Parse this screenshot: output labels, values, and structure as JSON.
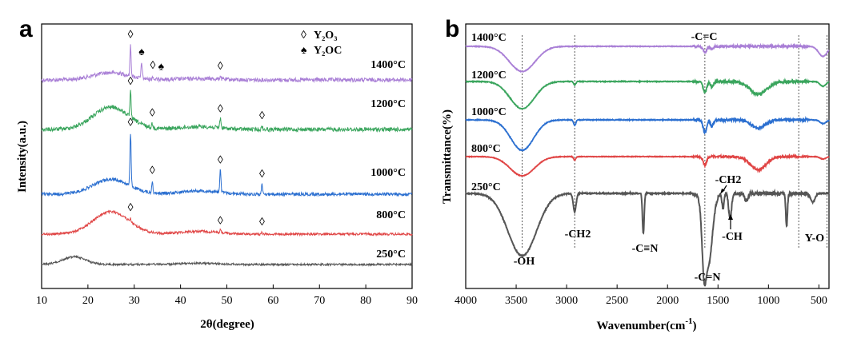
{
  "chart_data": [
    {
      "panel": "a",
      "type": "line",
      "title": "",
      "xlabel": "2θ(degree)",
      "ylabel": "Intensity(a.u.)",
      "xlim": [
        10,
        90
      ],
      "xticks": [
        10,
        20,
        30,
        40,
        50,
        60,
        70,
        80,
        90
      ],
      "legend": {
        "position": "top-right",
        "entries": [
          {
            "symbol": "◊",
            "label": "Y₂O₃"
          },
          {
            "symbol": "♠",
            "label": "Y₂OC"
          }
        ]
      },
      "series": [
        {
          "name": "1400°C",
          "color": "#a97fd6",
          "baseline": 0.0,
          "broad_center": 25,
          "broad_height": 0.13,
          "peaks": [
            [
              29.2,
              0.55
            ],
            [
              31.6,
              0.28
            ],
            [
              34.0,
              0.06
            ],
            [
              35.8,
              0.05
            ],
            [
              48.6,
              0.06
            ]
          ],
          "markers": [
            {
              "x": 29.2,
              "symbol": "◊"
            },
            {
              "x": 31.6,
              "symbol": "♠"
            },
            {
              "x": 34.0,
              "symbol": "◊"
            },
            {
              "x": 35.8,
              "symbol": "♠"
            },
            {
              "x": 48.6,
              "symbol": "◊"
            }
          ]
        },
        {
          "name": "1200°C",
          "color": "#3aa55d",
          "baseline": 0.0,
          "broad_center": 25,
          "broad_height": 0.4,
          "peaks": [
            [
              29.2,
              0.45
            ],
            [
              33.9,
              0.08
            ],
            [
              48.6,
              0.18
            ],
            [
              57.6,
              0.06
            ]
          ],
          "markers": [
            {
              "x": 29.2,
              "symbol": "◊"
            },
            {
              "x": 33.9,
              "symbol": "◊"
            },
            {
              "x": 48.6,
              "symbol": "◊"
            },
            {
              "x": 57.6,
              "symbol": "◊"
            }
          ]
        },
        {
          "name": "1000°C",
          "color": "#2b6fd0",
          "baseline": 0.0,
          "broad_center": 25,
          "broad_height": 0.22,
          "peaks": [
            [
              29.2,
              0.78
            ],
            [
              33.9,
              0.18
            ],
            [
              48.6,
              0.35
            ],
            [
              57.6,
              0.14
            ]
          ],
          "markers": [
            {
              "x": 29.2,
              "symbol": "◊"
            },
            {
              "x": 33.9,
              "symbol": "◊"
            },
            {
              "x": 48.6,
              "symbol": "◊"
            },
            {
              "x": 57.6,
              "symbol": "◊"
            }
          ]
        },
        {
          "name": "800°C",
          "color": "#e04545",
          "baseline": 0.0,
          "broad_center": 25,
          "broad_height": 0.4,
          "peaks": [
            [
              29.2,
              0.06
            ],
            [
              48.6,
              0.05
            ],
            [
              57.6,
              0.03
            ]
          ],
          "markers": [
            {
              "x": 29.2,
              "symbol": "◊"
            },
            {
              "x": 48.6,
              "symbol": "◊"
            },
            {
              "x": 57.6,
              "symbol": "◊"
            }
          ]
        },
        {
          "name": "250°C",
          "color": "#555555",
          "baseline": 0.0,
          "broad_center": 17,
          "broad_height": 0.16,
          "peaks": [],
          "markers": []
        }
      ]
    },
    {
      "panel": "b",
      "type": "line",
      "title": "",
      "xlabel": "Wavenumber(cm",
      "xlabel_sup": "-1",
      "xlabel_end": ")",
      "ylabel": "Transmittance(%)",
      "xlim": [
        4000,
        400
      ],
      "xticks": [
        4000,
        3500,
        3000,
        2500,
        2000,
        1500,
        1000,
        500
      ],
      "reference_lines": [
        3440,
        2920,
        1630,
        700,
        420
      ],
      "annotations": [
        "-OH",
        "-CH2",
        "-C≡N",
        "-C=N",
        "-CH2",
        "-CH",
        "Y-O",
        "-C=C"
      ],
      "series": [
        {
          "name": "1400°C",
          "color": "#a97fd6",
          "depth": 0.55,
          "bands": [
            [
              3440,
              180,
              0.75
            ],
            [
              1630,
              25,
              0.18
            ],
            [
              1560,
              20,
              0.08
            ],
            [
              460,
              60,
              0.3
            ]
          ]
        },
        {
          "name": "1200°C",
          "color": "#3aa55d",
          "depth": 0.55,
          "bands": [
            [
              3440,
              170,
              0.85
            ],
            [
              2920,
              15,
              0.12
            ],
            [
              1630,
              25,
              0.35
            ],
            [
              1560,
              20,
              0.18
            ],
            [
              1100,
              120,
              0.4
            ],
            [
              460,
              40,
              0.15
            ]
          ]
        },
        {
          "name": "1000°C",
          "color": "#2b6fd0",
          "depth": 0.55,
          "bands": [
            [
              3440,
              160,
              0.95
            ],
            [
              2920,
              15,
              0.18
            ],
            [
              1630,
              25,
              0.4
            ],
            [
              1560,
              20,
              0.2
            ],
            [
              1100,
              100,
              0.25
            ],
            [
              460,
              40,
              0.12
            ]
          ]
        },
        {
          "name": "800°C",
          "color": "#e04545",
          "depth": 0.55,
          "bands": [
            [
              3440,
              170,
              0.8
            ],
            [
              2920,
              15,
              0.15
            ],
            [
              1630,
              25,
              0.35
            ],
            [
              1100,
              110,
              0.55
            ],
            [
              460,
              40,
              0.1
            ]
          ]
        },
        {
          "name": "250°C",
          "color": "#555555",
          "depth": 1.0,
          "bands": [
            [
              3440,
              200,
              0.85
            ],
            [
              2920,
              20,
              0.25
            ],
            [
              2240,
              12,
              0.55
            ],
            [
              1600,
              60,
              1.0
            ],
            [
              1640,
              25,
              0.55
            ],
            [
              1380,
              20,
              0.35
            ],
            [
              1450,
              15,
              0.2
            ],
            [
              1220,
              25,
              0.1
            ],
            [
              820,
              12,
              0.45
            ],
            [
              560,
              30,
              0.12
            ]
          ]
        }
      ]
    }
  ]
}
